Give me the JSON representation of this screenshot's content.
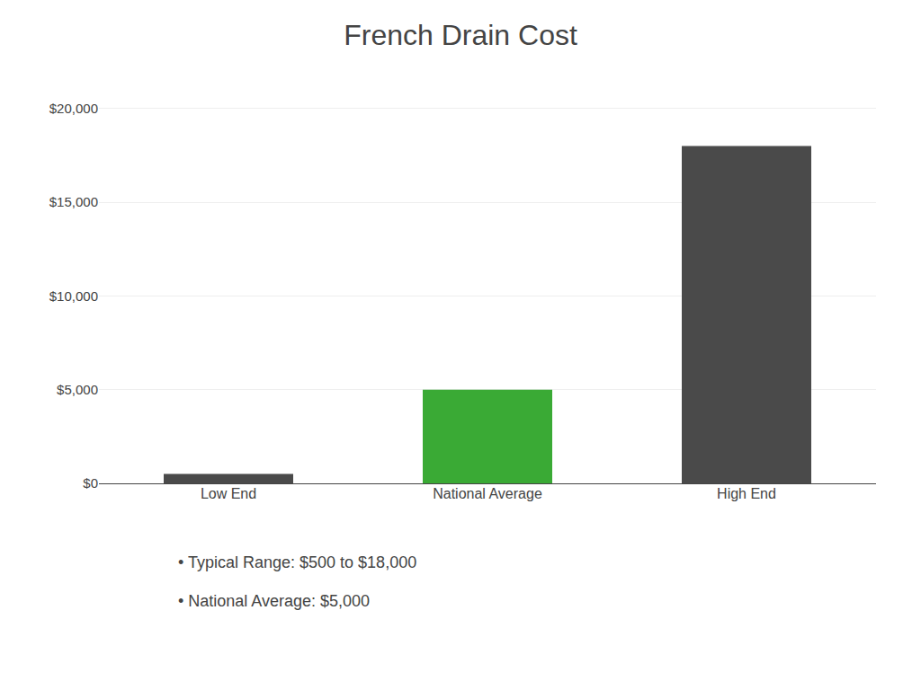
{
  "chart_data": {
    "type": "bar",
    "title": "French Drain Cost",
    "categories": [
      "Low End",
      "National Average",
      "High End"
    ],
    "values": [
      500,
      5000,
      18000
    ],
    "colors": [
      "#4a4a4a",
      "#3aaa35",
      "#4a4a4a"
    ],
    "ylim": [
      0,
      21000
    ],
    "yticks": [
      {
        "value": 0,
        "label": "$0"
      },
      {
        "value": 5000,
        "label": "$5,000"
      },
      {
        "value": 10000,
        "label": "$10,000"
      },
      {
        "value": 15000,
        "label": "$15,000"
      },
      {
        "value": 20000,
        "label": "$20,000"
      }
    ],
    "grid": true,
    "annotations": [
      "• Typical Range: $500 to $18,000",
      "• National Average: $5,000"
    ]
  }
}
